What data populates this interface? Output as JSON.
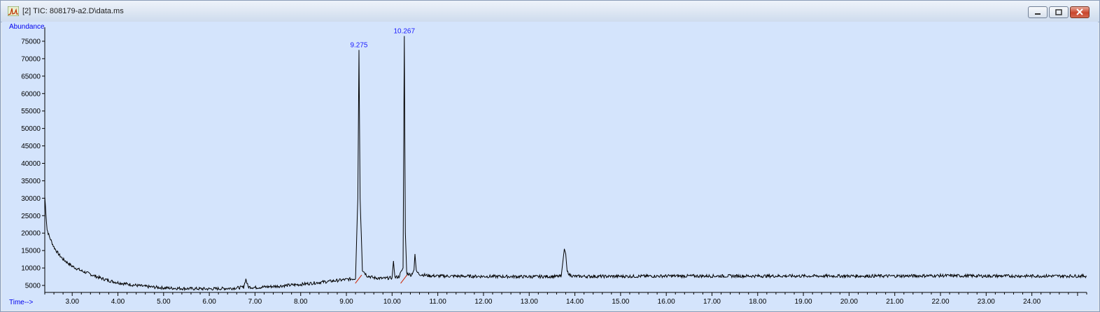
{
  "window": {
    "title": "[2] TIC: 808179-a2.D\\data.ms",
    "app_icon": "chromatogram-icon",
    "buttons": [
      "minimize-icon",
      "restore-icon",
      "close-icon"
    ]
  },
  "colors": {
    "plot_background": "#d4e4fc",
    "trace": "#000000",
    "axis_label": "#0000ee",
    "peak_label": "#1a1aff",
    "baseline_marker": "#cc2200"
  },
  "chart_data": {
    "type": "line",
    "title": "",
    "xlabel": "Time-->",
    "ylabel": "Abundance",
    "xlim": [
      2.4,
      25.2
    ],
    "ylim": [
      3000,
      79000
    ],
    "y_ticks": [
      5000,
      10000,
      15000,
      20000,
      25000,
      30000,
      35000,
      40000,
      45000,
      50000,
      55000,
      60000,
      65000,
      70000,
      75000
    ],
    "y_tick_labels": [
      "5000",
      "10000",
      "15000",
      "20000",
      "25000",
      "30000",
      "35000",
      "40000",
      "45000",
      "50000",
      "55000",
      "60000",
      "65000",
      "70000",
      "75000"
    ],
    "x_ticks": [
      3,
      4,
      5,
      6,
      7,
      8,
      9,
      10,
      11,
      12,
      13,
      14,
      15,
      16,
      17,
      18,
      19,
      20,
      21,
      22,
      23,
      24
    ],
    "x_tick_labels": [
      "3.00",
      "4.00",
      "5.00",
      "6.00",
      "7.00",
      "8.00",
      "9.00",
      "10.00",
      "11.00",
      "12.00",
      "13.00",
      "14.00",
      "15.00",
      "16.00",
      "17.00",
      "18.00",
      "19.00",
      "20.00",
      "21.00",
      "22.00",
      "23.00",
      "24.00"
    ],
    "grid": false,
    "series": [
      {
        "x": [
          2.4,
          2.45,
          2.5,
          2.6,
          2.7,
          2.8,
          3.0,
          3.2,
          3.4,
          3.6,
          3.8,
          4.0,
          4.3,
          4.6,
          5.0,
          5.5,
          6.0,
          6.5,
          6.75,
          6.8,
          6.85,
          7.0,
          7.5,
          8.0,
          8.5,
          9.0,
          9.2,
          9.25,
          9.275,
          9.3,
          9.35,
          9.45,
          9.6,
          9.8,
          10.0,
          10.03,
          10.06,
          10.15,
          10.24,
          10.267,
          10.29,
          10.32,
          10.42,
          10.48,
          10.5,
          10.53,
          10.6,
          10.8,
          11.0,
          12.0,
          13.0,
          13.7,
          13.77,
          13.8,
          13.83,
          13.9,
          14.0,
          15.0,
          16.0,
          17.0,
          18.0,
          19.0,
          20.0,
          21.0,
          22.0,
          23.0,
          24.0,
          25.2
        ],
        "y": [
          30500,
          21000,
          19000,
          16000,
          14000,
          12500,
          10500,
          9200,
          8200,
          7200,
          6400,
          5800,
          5200,
          4700,
          4300,
          4100,
          4000,
          4200,
          4500,
          6800,
          4600,
          4400,
          4800,
          5300,
          6000,
          6700,
          7000,
          30000,
          72500,
          30000,
          9500,
          7800,
          7200,
          7000,
          7200,
          12000,
          7300,
          7500,
          10000,
          76500,
          20000,
          8500,
          8000,
          9500,
          14000,
          9000,
          8200,
          7800,
          7700,
          7600,
          7500,
          7600,
          15500,
          14000,
          9000,
          7900,
          7600,
          7600,
          7700,
          7700,
          7700,
          7700,
          7700,
          7700,
          7800,
          7700,
          7700,
          7700
        ]
      }
    ],
    "annotations": [
      {
        "x": 9.275,
        "y": 72500,
        "text": "9.275"
      },
      {
        "x": 10.267,
        "y": 76500,
        "text": "10.267"
      }
    ]
  }
}
